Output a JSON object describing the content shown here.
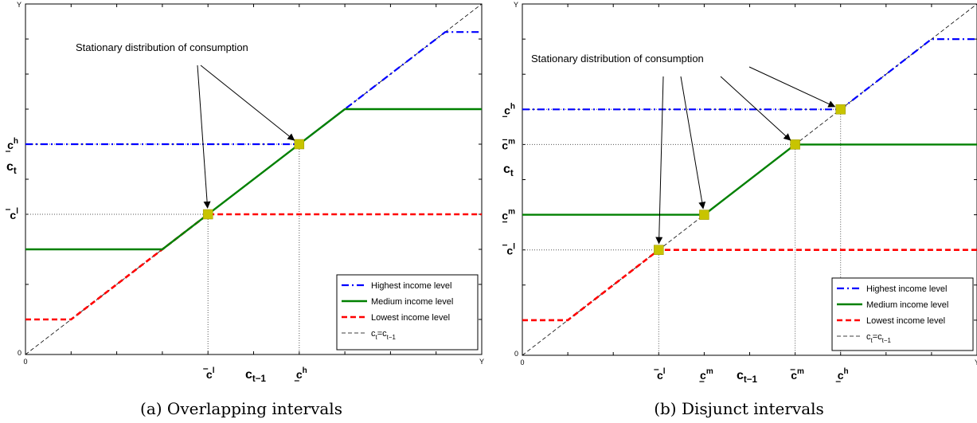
{
  "chart_data": [
    {
      "type": "line",
      "caption": "(a) Overlapping intervals",
      "xlabel": "c_{t−1}",
      "ylabel": "c_t",
      "axis_origin_label": "0",
      "x_max_label": "Y",
      "y_max_label": "Y",
      "xlim": [
        0,
        10
      ],
      "ylim": [
        0,
        10
      ],
      "x_ticks": [
        {
          "value": 4,
          "base": "c",
          "accent": "bar",
          "sup": "l"
        },
        {
          "value": 6,
          "base": "c",
          "accent": "under",
          "sup": "h"
        }
      ],
      "y_ticks": [
        {
          "value": 4,
          "base": "c",
          "accent": "bar",
          "sup": "l"
        },
        {
          "value": 6,
          "base": "c",
          "accent": "under",
          "sup": "h"
        }
      ],
      "series": [
        {
          "name": "Highest income level",
          "color": "#0000ff",
          "style": "dashdot",
          "x": [
            0,
            6,
            9.2,
            10
          ],
          "y": [
            6,
            6,
            9.2,
            9.2
          ]
        },
        {
          "name": "Medium income level",
          "color": "#008000",
          "style": "solid",
          "x": [
            0,
            3,
            7,
            10
          ],
          "y": [
            3,
            3,
            7,
            7
          ]
        },
        {
          "name": "Lowest income level",
          "color": "#ff0000",
          "style": "dashed",
          "x": [
            0,
            1,
            4,
            10
          ],
          "y": [
            1,
            1,
            4,
            4
          ]
        },
        {
          "name": "c_t=c_{t−1}",
          "color": "#000000",
          "style": "thin-dashed",
          "x": [
            0,
            10
          ],
          "y": [
            0,
            10
          ]
        }
      ],
      "stationary_points": [
        {
          "x": 4,
          "y": 4
        },
        {
          "x": 6,
          "y": 6
        }
      ],
      "guides": [
        {
          "x": 4,
          "y": 4
        },
        {
          "x": 6,
          "y": 6
        }
      ],
      "annotation": {
        "text": "Stationary distribution of consumption",
        "targets": [
          0,
          1
        ]
      },
      "legend": "bottom-right"
    },
    {
      "type": "line",
      "caption": "(b) Disjunct intervals",
      "xlabel": "c_{t−1}",
      "ylabel": "c_t",
      "axis_origin_label": "0",
      "x_max_label": "Y",
      "y_max_label": "Y",
      "xlim": [
        0,
        10
      ],
      "ylim": [
        0,
        10
      ],
      "x_ticks": [
        {
          "value": 3,
          "base": "c",
          "accent": "bar",
          "sup": "l"
        },
        {
          "value": 4,
          "base": "c",
          "accent": "under",
          "sup": "m"
        },
        {
          "value": 6,
          "base": "c",
          "accent": "bar",
          "sup": "m"
        },
        {
          "value": 7,
          "base": "c",
          "accent": "under",
          "sup": "h"
        }
      ],
      "y_ticks": [
        {
          "value": 3,
          "base": "c",
          "accent": "bar",
          "sup": "l"
        },
        {
          "value": 4,
          "base": "c",
          "accent": "under",
          "sup": "m"
        },
        {
          "value": 6,
          "base": "c",
          "accent": "bar",
          "sup": "m"
        },
        {
          "value": 7,
          "base": "c",
          "accent": "under",
          "sup": "h"
        }
      ],
      "series": [
        {
          "name": "Highest income level",
          "color": "#0000ff",
          "style": "dashdot",
          "x": [
            0,
            7,
            9.0,
            10
          ],
          "y": [
            7,
            7,
            9.0,
            9.0
          ]
        },
        {
          "name": "Medium income level",
          "color": "#008000",
          "style": "solid",
          "x": [
            0,
            4,
            6,
            10
          ],
          "y": [
            4,
            4,
            6,
            6
          ]
        },
        {
          "name": "Lowest income level",
          "color": "#ff0000",
          "style": "dashed",
          "x": [
            0,
            1,
            3,
            10
          ],
          "y": [
            1,
            1,
            3,
            3
          ]
        },
        {
          "name": "c_t=c_{t−1}",
          "color": "#000000",
          "style": "thin-dashed",
          "x": [
            0,
            10
          ],
          "y": [
            0,
            10
          ]
        }
      ],
      "stationary_points": [
        {
          "x": 3,
          "y": 3
        },
        {
          "x": 4,
          "y": 4
        },
        {
          "x": 6,
          "y": 6
        },
        {
          "x": 7,
          "y": 7
        }
      ],
      "guides": [
        {
          "x": 3,
          "y": 3
        },
        {
          "x": 6,
          "y": 6
        },
        {
          "x": 7,
          "y": 7
        }
      ],
      "annotation": {
        "text": "Stationary distribution of consumption",
        "targets": [
          0,
          1,
          2,
          3
        ]
      },
      "legend": "bottom-right"
    }
  ],
  "colors": {
    "highest": "#0000ff",
    "medium": "#008000",
    "lowest": "#ff0000",
    "diagonal": "#000000",
    "marker": "#c8c400"
  }
}
